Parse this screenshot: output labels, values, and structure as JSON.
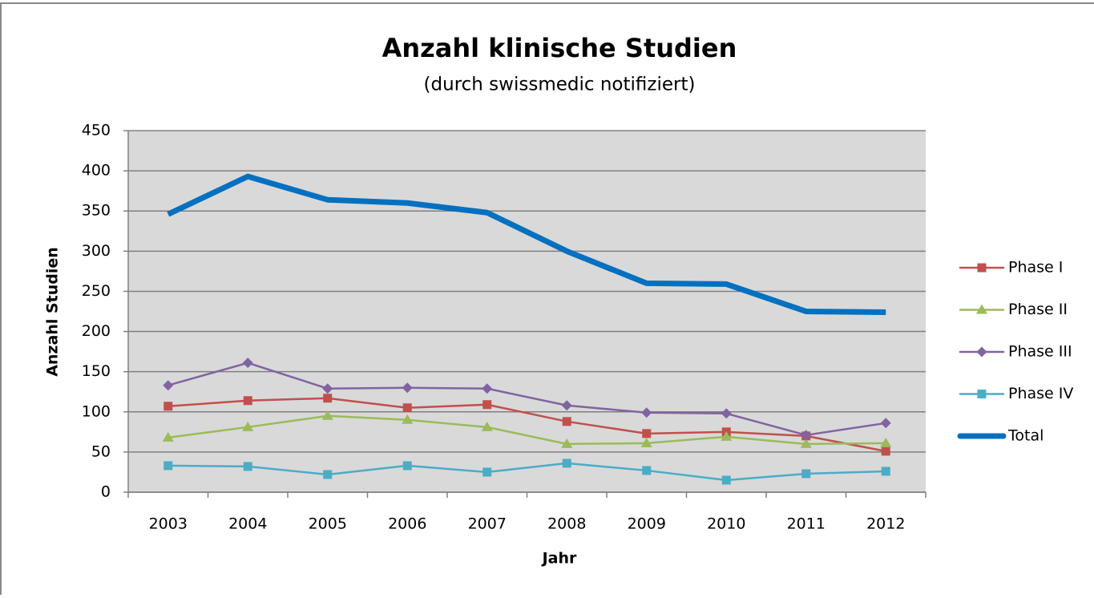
{
  "chart_data": {
    "type": "line",
    "title": "Anzahl klinische Studien",
    "subtitle": "(durch swissmedic notifiziert)",
    "x_label": "Jahr",
    "y_label": "Anzahl Studien",
    "categories": [
      "2003",
      "2004",
      "2005",
      "2006",
      "2007",
      "2008",
      "2009",
      "2010",
      "2011",
      "2012"
    ],
    "ylim": [
      0,
      450
    ],
    "yticks": [
      0,
      50,
      100,
      150,
      200,
      250,
      300,
      350,
      400,
      450
    ],
    "grid": true,
    "legend": "right",
    "series": [
      {
        "name": "Phase I",
        "color": "#c0504d",
        "marker": "square",
        "values": [
          107,
          114,
          117,
          105,
          109,
          88,
          73,
          75,
          70,
          51
        ]
      },
      {
        "name": "Phase II",
        "color": "#9bbb59",
        "marker": "triangle",
        "values": [
          68,
          81,
          95,
          90,
          81,
          60,
          61,
          69,
          60,
          61
        ]
      },
      {
        "name": "Phase III",
        "color": "#8064a2",
        "marker": "diamond",
        "values": [
          133,
          161,
          129,
          130,
          129,
          108,
          99,
          98,
          71,
          86
        ]
      },
      {
        "name": "Phase IV",
        "color": "#4bacc6",
        "marker": "square",
        "values": [
          33,
          32,
          22,
          33,
          25,
          36,
          27,
          15,
          23,
          26
        ]
      },
      {
        "name": "Total",
        "color": "#0070c0",
        "marker": "none",
        "values": [
          346,
          393,
          364,
          360,
          348,
          300,
          260,
          259,
          225,
          224
        ]
      }
    ]
  }
}
